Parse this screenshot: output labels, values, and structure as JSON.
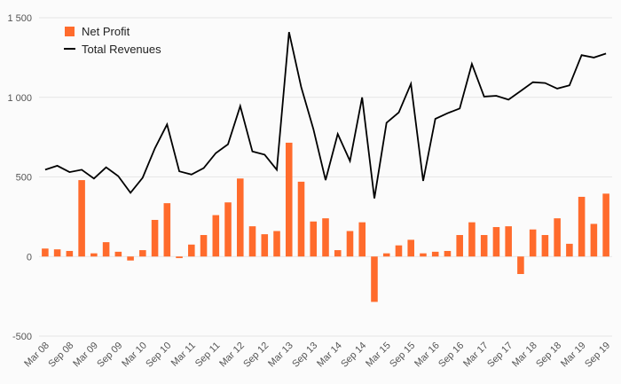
{
  "chart_data": {
    "type": "bar+line",
    "legend_position": "top-left",
    "grid": true,
    "ylim": [
      -500,
      1500
    ],
    "yticks": [
      -500,
      0,
      500,
      1000,
      1500
    ],
    "ytick_labels": [
      "-500",
      "0",
      "500",
      "1 000",
      "1 500"
    ],
    "categories": [
      "Mar 08",
      "Jun 08",
      "Sep 08",
      "Dec 08",
      "Mar 09",
      "Jun 09",
      "Sep 09",
      "Dec 09",
      "Mar 10",
      "Jun 10",
      "Sep 10",
      "Dec 10",
      "Mar 11",
      "Jun 11",
      "Sep 11",
      "Dec 11",
      "Mar 12",
      "Jun 12",
      "Sep 12",
      "Dec 12",
      "Mar 13",
      "Jun 13",
      "Sep 13",
      "Dec 13",
      "Mar 14",
      "Jun 14",
      "Sep 14",
      "Dec 14",
      "Mar 15",
      "Jun 15",
      "Sep 15",
      "Dec 15",
      "Mar 16",
      "Jun 16",
      "Sep 16",
      "Dec 16",
      "Mar 17",
      "Jun 17",
      "Sep 17",
      "Dec 17",
      "Mar 18",
      "Jun 18",
      "Sep 18",
      "Dec 18",
      "Mar 19",
      "Jun 19",
      "Sep 19"
    ],
    "xtick_labels": [
      "Mar 08",
      "Sep 08",
      "Mar 09",
      "Sep 09",
      "Mar 10",
      "Sep 10",
      "Mar 11",
      "Sep 11",
      "Mar 12",
      "Sep 12",
      "Mar 13",
      "Sep 13",
      "Mar 14",
      "Sep 14",
      "Mar 15",
      "Sep 15",
      "Mar 16",
      "Sep 16",
      "Mar 17",
      "Sep 17",
      "Mar 18",
      "Sep 18",
      "Mar 19",
      "Sep 19"
    ],
    "series": [
      {
        "name": "Net Profit",
        "kind": "bar",
        "color": "#ff6b2c",
        "values": [
          50,
          45,
          35,
          480,
          20,
          90,
          30,
          -25,
          40,
          230,
          335,
          -10,
          75,
          135,
          260,
          340,
          490,
          190,
          140,
          160,
          715,
          470,
          220,
          240,
          40,
          160,
          215,
          -285,
          20,
          70,
          105,
          20,
          30,
          35,
          135,
          215,
          135,
          185,
          190,
          -110,
          170,
          135,
          240,
          80,
          375,
          205,
          395
        ]
      },
      {
        "name": "Total Revenues",
        "kind": "line",
        "color": "#000000",
        "values": [
          545,
          570,
          530,
          545,
          490,
          560,
          505,
          400,
          495,
          680,
          830,
          535,
          515,
          555,
          650,
          705,
          945,
          660,
          640,
          545,
          1410,
          1065,
          800,
          480,
          770,
          600,
          1000,
          365,
          840,
          905,
          1085,
          475,
          865,
          900,
          930,
          1210,
          1005,
          1010,
          985,
          1040,
          1095,
          1090,
          1055,
          1075,
          1265,
          1250,
          1275
        ]
      }
    ]
  }
}
